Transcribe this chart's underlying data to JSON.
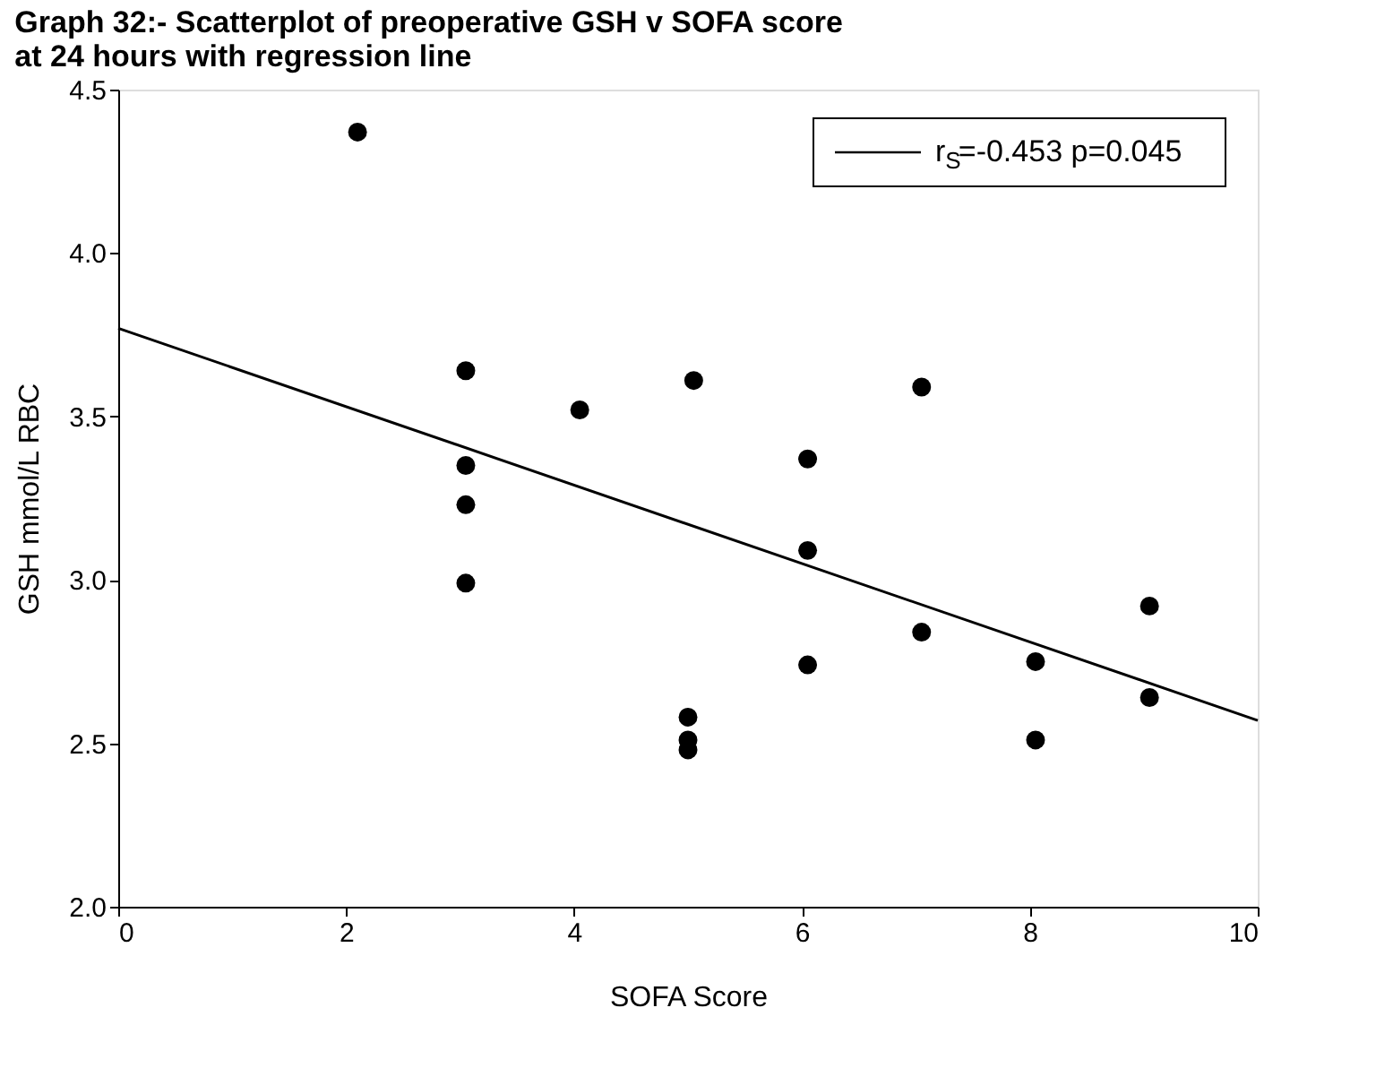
{
  "chart_data": {
    "type": "scatter",
    "title": "Graph 32:- Scatterplot of preoperative GSH v SOFA score at 24 hours with regression line",
    "xlabel": "SOFA Score",
    "ylabel": "GSH mmol/L RBC",
    "series": [
      {
        "color": "#000000",
        "marker": "circle",
        "x": [
          2.1,
          3.05,
          3.05,
          3.05,
          3.05,
          4.05,
          5.05,
          5,
          5,
          5,
          6.05,
          6.05,
          6.05,
          7.05,
          7.05,
          8.05,
          8.05,
          9.05,
          9.05
        ],
        "values": [
          4.37,
          3.64,
          3.35,
          3.23,
          2.99,
          3.52,
          3.61,
          2.58,
          2.51,
          2.48,
          3.37,
          3.09,
          2.74,
          3.59,
          2.84,
          2.75,
          2.51,
          2.92,
          2.64
        ]
      },
      {
        "type": "line",
        "name": "r$_{S}$=-0.453 p=0.045",
        "color": "#000000",
        "x": [
          0,
          10
        ],
        "values": [
          3.77,
          2.57
        ]
      }
    ],
    "xlim": [
      0,
      10
    ],
    "xticks": [
      0,
      2,
      4,
      6,
      8,
      10
    ],
    "ylim": [
      2.0,
      4.5
    ],
    "yticks": [
      {
        "value": 2.0,
        "label": "2.0"
      },
      {
        "value": 2.5,
        "label": "2.5"
      },
      {
        "value": 3.0,
        "label": "3.0"
      },
      {
        "value": 3.5,
        "label": "3.5"
      },
      {
        "value": 4.0,
        "label": "4.0"
      },
      {
        "value": 4.5,
        "label": "4.5"
      }
    ],
    "grid": false,
    "legend": "top right"
  }
}
